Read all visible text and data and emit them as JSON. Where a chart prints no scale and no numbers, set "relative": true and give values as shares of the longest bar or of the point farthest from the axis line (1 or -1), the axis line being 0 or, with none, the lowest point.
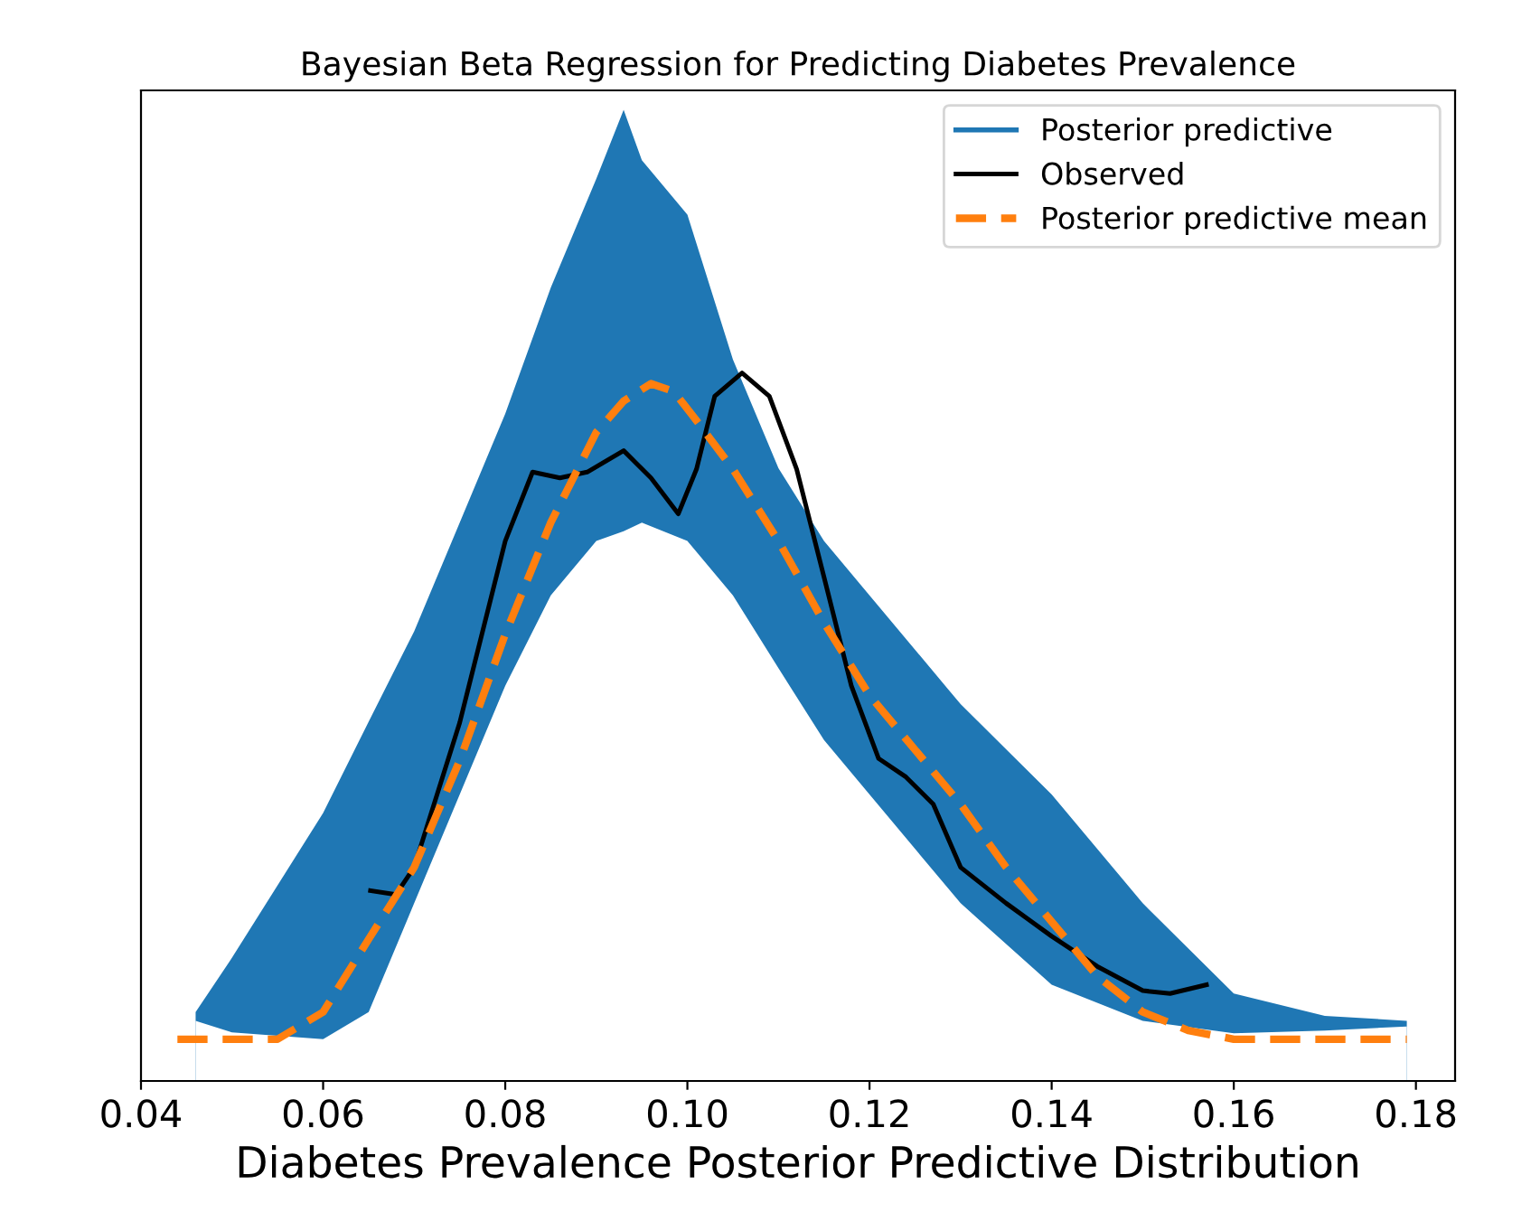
{
  "chart_data": {
    "type": "line",
    "title": "Bayesian Beta Regression for Predicting Diabetes Prevalence",
    "xlabel": "Diabetes Prevalence Posterior Predictive Distribution",
    "relative": true,
    "xlim": [
      0.04,
      0.1843
    ],
    "xticks": [
      {
        "value": 0.04,
        "label": "0.04"
      },
      {
        "value": 0.06,
        "label": "0.06"
      },
      {
        "value": 0.08,
        "label": "0.08"
      },
      {
        "value": 0.1,
        "label": "0.10"
      },
      {
        "value": 0.12,
        "label": "0.12"
      },
      {
        "value": 0.14,
        "label": "0.14"
      },
      {
        "value": 0.16,
        "label": "0.16"
      },
      {
        "value": 0.18,
        "label": "0.18"
      }
    ],
    "tick_labels": "x",
    "legend": "top right",
    "series": [
      {
        "name": "Posterior predictive",
        "type": "area",
        "color": "#1f77b4",
        "x": [
          0.046,
          0.05,
          0.06,
          0.065,
          0.07,
          0.075,
          0.08,
          0.085,
          0.09,
          0.093,
          0.095,
          0.1,
          0.105,
          0.11,
          0.115,
          0.12,
          0.13,
          0.14,
          0.15,
          0.16,
          0.17,
          0.179
        ],
        "values": [
          0.071,
          0.127,
          0.276,
          0.37,
          0.463,
          0.575,
          0.687,
          0.817,
          0.929,
          1.0,
          0.948,
          0.892,
          0.743,
          0.631,
          0.556,
          0.5,
          0.388,
          0.295,
          0.183,
          0.09,
          0.067,
          0.062
        ]
      },
      {
        "type": "area",
        "color": "#ffffff",
        "x": [
          0.046,
          0.05,
          0.06,
          0.065,
          0.07,
          0.075,
          0.08,
          0.085,
          0.09,
          0.093,
          0.095,
          0.1,
          0.105,
          0.11,
          0.115,
          0.12,
          0.13,
          0.14,
          0.15,
          0.16,
          0.17,
          0.179
        ],
        "values": [
          0.062,
          0.05,
          0.043,
          0.071,
          0.183,
          0.295,
          0.407,
          0.5,
          0.556,
          0.566,
          0.575,
          0.556,
          0.5,
          0.425,
          0.351,
          0.295,
          0.183,
          0.099,
          0.062,
          0.049,
          0.052,
          0.056
        ]
      },
      {
        "name": "Observed",
        "color": "#000000",
        "line_style": "solid",
        "x": [
          0.0652,
          0.068,
          0.07,
          0.075,
          0.08,
          0.083,
          0.086,
          0.089,
          0.093,
          0.096,
          0.099,
          0.101,
          0.103,
          0.106,
          0.109,
          0.112,
          0.115,
          0.118,
          0.121,
          0.124,
          0.127,
          0.13,
          0.135,
          0.14,
          0.145,
          0.15,
          0.153,
          0.157
        ],
        "values": [
          0.196,
          0.192,
          0.22,
          0.369,
          0.556,
          0.627,
          0.621,
          0.627,
          0.649,
          0.621,
          0.584,
          0.63,
          0.705,
          0.729,
          0.705,
          0.63,
          0.519,
          0.407,
          0.332,
          0.313,
          0.285,
          0.22,
          0.183,
          0.149,
          0.118,
          0.093,
          0.09,
          0.099
        ]
      },
      {
        "name": "Posterior predictive mean",
        "color": "#ff7f0e",
        "line_style": "dashed",
        "x": [
          0.044,
          0.055,
          0.06,
          0.065,
          0.07,
          0.075,
          0.08,
          0.085,
          0.09,
          0.093,
          0.096,
          0.0985,
          0.101,
          0.105,
          0.11,
          0.115,
          0.12,
          0.125,
          0.13,
          0.135,
          0.14,
          0.145,
          0.15,
          0.155,
          0.16,
          0.179
        ],
        "values": [
          0.043,
          0.043,
          0.071,
          0.146,
          0.22,
          0.33,
          0.46,
          0.575,
          0.668,
          0.7,
          0.718,
          0.71,
          0.68,
          0.63,
          0.556,
          0.472,
          0.397,
          0.341,
          0.285,
          0.22,
          0.164,
          0.108,
          0.071,
          0.052,
          0.043,
          0.043
        ]
      }
    ]
  }
}
